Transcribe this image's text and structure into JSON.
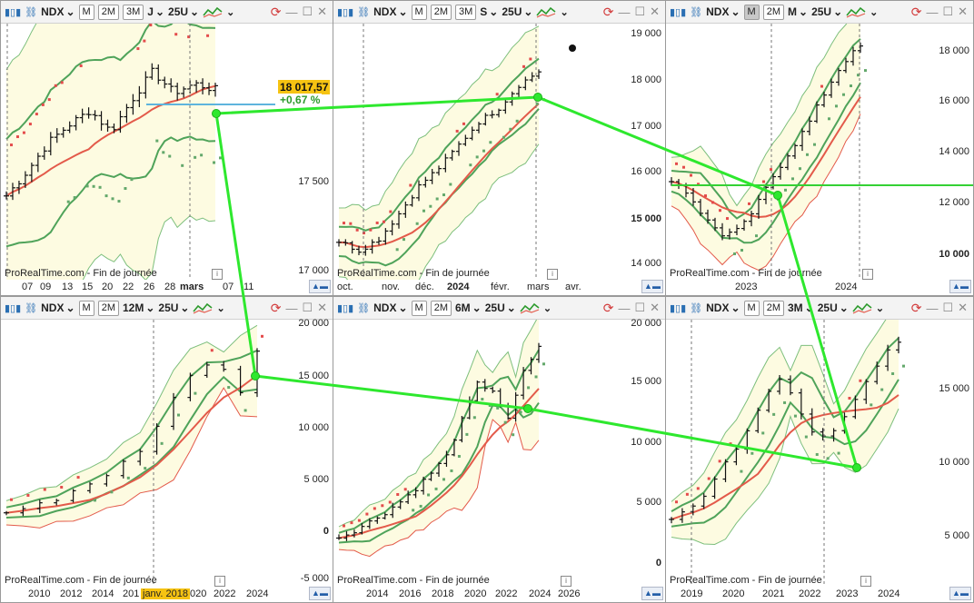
{
  "common": {
    "symbol": "NDX",
    "bb_period": "25U",
    "btn_m": "M",
    "btn_2m": "2M",
    "btn_3m": "3M",
    "watermark": "ProRealTime.com - Fin de journée",
    "info_glyph": "i",
    "scroll_glyph": "▲▬"
  },
  "panels": [
    {
      "id": "p1",
      "period": "J",
      "show_3m": true,
      "active_btn": "",
      "y_labels": [
        {
          "t": "17 500",
          "b": false
        },
        {
          "t": "17 000",
          "b": false
        }
      ],
      "x_labels": [
        {
          "t": "07",
          "b": false
        },
        {
          "t": "09",
          "b": false
        },
        {
          "t": "13",
          "b": false
        },
        {
          "t": "15",
          "b": false
        },
        {
          "t": "20",
          "b": false
        },
        {
          "t": "22",
          "b": false
        },
        {
          "t": "26",
          "b": false
        },
        {
          "t": "28",
          "b": false
        },
        {
          "t": "mars",
          "b": true
        },
        {
          "t": "07",
          "b": false
        },
        {
          "t": "11",
          "b": false
        }
      ],
      "last_price": "18 017,57",
      "change": "+0,67 %"
    },
    {
      "id": "p2",
      "period": "S",
      "show_3m": true,
      "active_btn": "",
      "y_labels": [
        {
          "t": "19 000",
          "b": false
        },
        {
          "t": "18 000",
          "b": false
        },
        {
          "t": "17 000",
          "b": false
        },
        {
          "t": "16 000",
          "b": false
        },
        {
          "t": "15 000",
          "b": true
        },
        {
          "t": "14 000",
          "b": false
        }
      ],
      "x_labels": [
        {
          "t": "oct.",
          "b": false
        },
        {
          "t": "nov.",
          "b": false
        },
        {
          "t": "déc.",
          "b": false
        },
        {
          "t": "2024",
          "b": true
        },
        {
          "t": "févr.",
          "b": false
        },
        {
          "t": "mars",
          "b": false
        },
        {
          "t": "avr.",
          "b": false
        }
      ]
    },
    {
      "id": "p3",
      "period": "M",
      "show_3m": false,
      "active_btn": "M",
      "y_labels": [
        {
          "t": "18 000",
          "b": false
        },
        {
          "t": "16 000",
          "b": false
        },
        {
          "t": "14 000",
          "b": false
        },
        {
          "t": "12 000",
          "b": false
        },
        {
          "t": "10 000",
          "b": true
        }
      ],
      "x_labels": [
        {
          "t": "2023",
          "b": false
        },
        {
          "t": "2024",
          "b": false
        }
      ]
    },
    {
      "id": "p4",
      "period": "12M",
      "show_3m": false,
      "active_btn": "",
      "y_labels": [
        {
          "t": "20 000",
          "b": false
        },
        {
          "t": "15 000",
          "b": false
        },
        {
          "t": "10 000",
          "b": false
        },
        {
          "t": "5 000",
          "b": false
        },
        {
          "t": "0",
          "b": true
        },
        {
          "t": "-5 000",
          "b": false
        }
      ],
      "x_labels": [
        {
          "t": "2010",
          "b": false
        },
        {
          "t": "2012",
          "b": false
        },
        {
          "t": "2014",
          "b": false
        },
        {
          "t": "201",
          "b": false
        },
        {
          "t": "020",
          "b": false
        },
        {
          "t": "2022",
          "b": false
        },
        {
          "t": "2024",
          "b": false
        }
      ],
      "cursor_date": "janv. 2018"
    },
    {
      "id": "p5",
      "period": "6M",
      "show_3m": false,
      "active_btn": "",
      "y_labels": [
        {
          "t": "20 000",
          "b": false
        },
        {
          "t": "15 000",
          "b": false
        },
        {
          "t": "10 000",
          "b": false
        },
        {
          "t": "5 000",
          "b": false
        },
        {
          "t": "0",
          "b": true
        }
      ],
      "x_labels": [
        {
          "t": "2014",
          "b": false
        },
        {
          "t": "2016",
          "b": false
        },
        {
          "t": "2018",
          "b": false
        },
        {
          "t": "2020",
          "b": false
        },
        {
          "t": "2022",
          "b": false
        },
        {
          "t": "2024",
          "b": false
        },
        {
          "t": "2026",
          "b": false
        }
      ]
    },
    {
      "id": "p6",
      "period": "3M",
      "show_3m": false,
      "active_btn": "",
      "y_labels": [
        {
          "t": "15 000",
          "b": false
        },
        {
          "t": "10 000",
          "b": false
        },
        {
          "t": "5 000",
          "b": false
        }
      ],
      "x_labels": [
        {
          "t": "2019",
          "b": false
        },
        {
          "t": "2020",
          "b": false
        },
        {
          "t": "2021",
          "b": false
        },
        {
          "t": "2022",
          "b": false
        },
        {
          "t": "2023",
          "b": false
        },
        {
          "t": "2024",
          "b": false
        }
      ]
    }
  ],
  "colors": {
    "band_fill": "#fdfbe1",
    "band_line": "#7dbf7d",
    "ma_green": "#4fa35a",
    "ma_red": "#e35a4a",
    "sar_green": "#63a86b",
    "sar_red": "#e44b4b",
    "bars": "#111111",
    "connector": "#2ee82e",
    "hline_blue": "#5eb4dd",
    "hline_green": "#34d134",
    "price_bg": "#f6c312",
    "positive": "#2c9a2c"
  }
}
